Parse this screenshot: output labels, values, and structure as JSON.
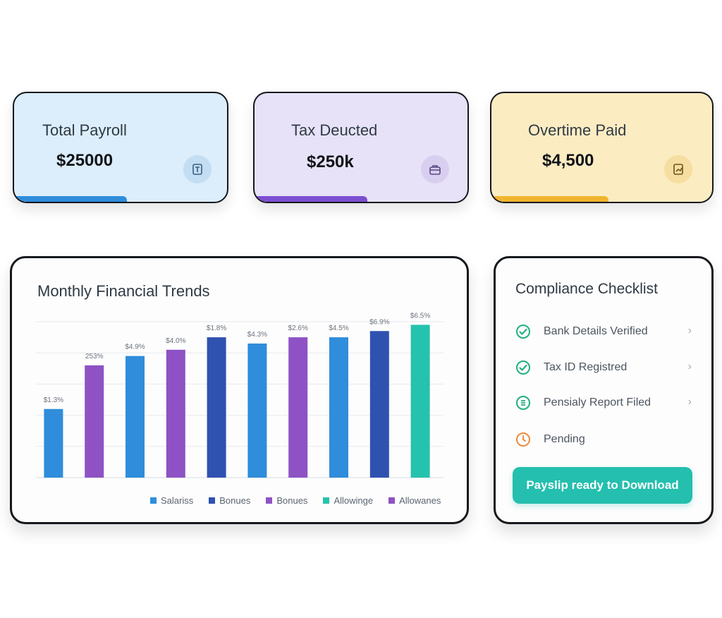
{
  "stats": [
    {
      "title": "Total Payroll",
      "value": "$25000",
      "icon": "payroll-doc-icon",
      "accent": "#2f8ddb"
    },
    {
      "title": "Tax Deucted",
      "value": "$250k",
      "icon": "briefcase-icon",
      "accent": "#7c4fd1"
    },
    {
      "title": "Overtime Paid",
      "value": "$4,500",
      "icon": "trend-doc-icon",
      "accent": "#f1b52f"
    }
  ],
  "chart": {
    "title": "Monthly Financial Trends"
  },
  "chart_data": {
    "type": "bar",
    "title": "Monthly Financial Trends",
    "values": [
      22,
      36,
      39,
      41,
      45,
      43,
      45,
      45,
      47,
      49
    ],
    "data_labels": [
      "$1.3%",
      "253%",
      "$4.9%",
      "$4.0%",
      "$1.8%",
      "$4.3%",
      "$2.6%",
      "$4.5%",
      "$6.9%",
      "$6.5%"
    ],
    "bar_colors": [
      "#2f8ddb",
      "#8e52c4",
      "#2f8ddb",
      "#8e52c4",
      "#2f52b0",
      "#2f8ddb",
      "#8e52c4",
      "#2f8ddb",
      "#2f52b0",
      "#25c2ad"
    ],
    "ylim": [
      0,
      50
    ],
    "grid": true,
    "legend_position": "bottom",
    "legend": [
      {
        "name": "Salariss",
        "color": "#2f8ddb"
      },
      {
        "name": "Bonues",
        "color": "#2f52b0"
      },
      {
        "name": "Bonues",
        "color": "#8e52c4"
      },
      {
        "name": "Allowinge",
        "color": "#25c2ad"
      },
      {
        "name": "Allowanes",
        "color": "#8e52c4"
      }
    ]
  },
  "checklist": {
    "title": "Compliance Checklist",
    "items": [
      {
        "label": "Bank Details Verified",
        "icon": "check-circle-icon",
        "color": "#22b07d"
      },
      {
        "label": "Tax ID Registred",
        "icon": "check-circle-icon",
        "color": "#22b07d"
      },
      {
        "label": "Pensialy Report Filed",
        "icon": "list-circle-icon",
        "color": "#22b07d"
      },
      {
        "label": "Pending",
        "icon": "clock-icon",
        "color": "#f08a3c"
      }
    ],
    "button_label": "Payslip ready to Download",
    "button_color": "#24bfae"
  }
}
